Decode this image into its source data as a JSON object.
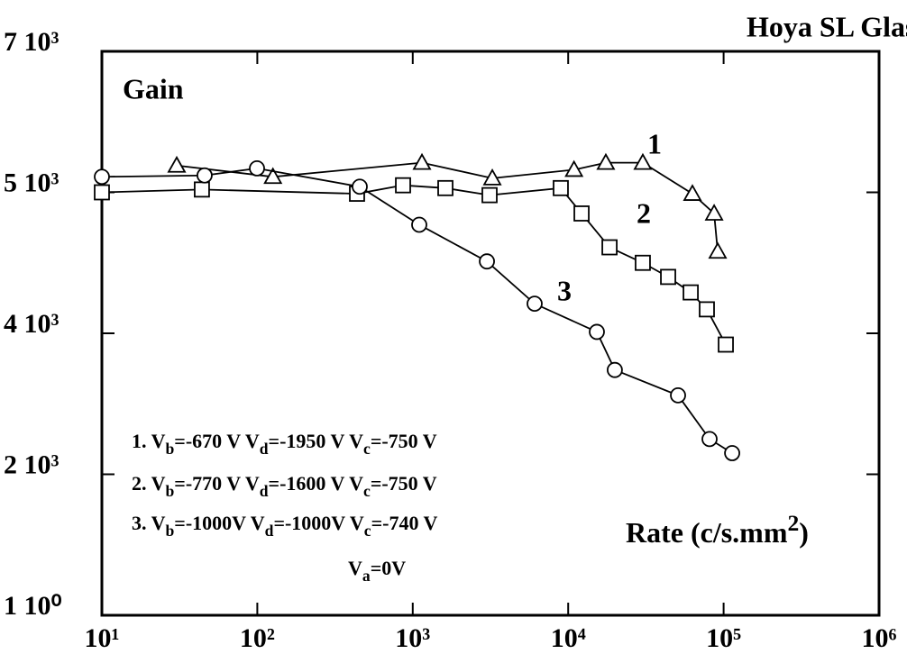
{
  "chart_data": {
    "type": "line",
    "title": "Hoya SL Glass",
    "ylabel": "Gain",
    "xlabel": [
      "Rate  (c/s.mm",
      "2",
      ")"
    ],
    "xscale": "log",
    "xlim": [
      10,
      1000000
    ],
    "xticks": [
      {
        "value": 10,
        "label": "10¹"
      },
      {
        "value": 100,
        "label": "10²"
      },
      {
        "value": 1000,
        "label": "10³"
      },
      {
        "value": 10000,
        "label": "10⁴"
      },
      {
        "value": 100000,
        "label": "10⁵"
      },
      {
        "value": 1000000,
        "label": "10⁶"
      }
    ],
    "ylim": [
      0,
      4
    ],
    "yticks": [
      {
        "value": 0,
        "label": "1  10⁰"
      },
      {
        "value": 1,
        "label": "2  10³"
      },
      {
        "value": 2,
        "label": "4  10³"
      },
      {
        "value": 3,
        "label": "5  10³"
      },
      {
        "value": 4,
        "label": "7  10³"
      }
    ],
    "series": [
      {
        "name": "1",
        "color": "#000000",
        "marker": "triangle",
        "x": [
          30.3,
          126,
          1146,
          3250,
          10900,
          17460,
          30200,
          63000,
          86900,
          91600
        ],
        "values": [
          3.19,
          3.11,
          3.21,
          3.1,
          3.16,
          3.21,
          3.21,
          2.99,
          2.85,
          2.58
        ]
      },
      {
        "name": "2",
        "color": "#000000",
        "marker": "square",
        "x": [
          10,
          44,
          438,
          866,
          1622,
          3120,
          8960,
          12190,
          18450,
          30200,
          43950,
          61400,
          78000,
          103300
        ],
        "values": [
          3.0,
          3.02,
          2.99,
          3.05,
          3.03,
          2.98,
          3.03,
          2.85,
          2.61,
          2.5,
          2.4,
          2.29,
          2.17,
          1.92
        ]
      },
      {
        "name": "3",
        "color": "#000000",
        "marker": "circle",
        "x": [
          10,
          45.8,
          99.5,
          456,
          1101,
          3000,
          6083,
          15290,
          19950,
          50900,
          81200,
          113500
        ],
        "values": [
          3.11,
          3.12,
          3.17,
          3.04,
          2.77,
          2.51,
          2.21,
          2.01,
          1.74,
          1.56,
          1.25,
          1.15
        ]
      }
    ],
    "notes": [
      [
        "1. V",
        "b",
        "=-670 V   V",
        "d",
        "=-1950 V   V",
        "c",
        "=-750 V"
      ],
      [
        "2. V",
        "b",
        "=-770 V   V",
        "d",
        "=-1600 V   V",
        "c",
        "=-750 V"
      ],
      [
        "3. V",
        "b",
        "=-1000V   V",
        "d",
        "=-1000V   V",
        "c",
        "=-740 V"
      ],
      [
        "V",
        "a",
        "=0V"
      ]
    ]
  }
}
